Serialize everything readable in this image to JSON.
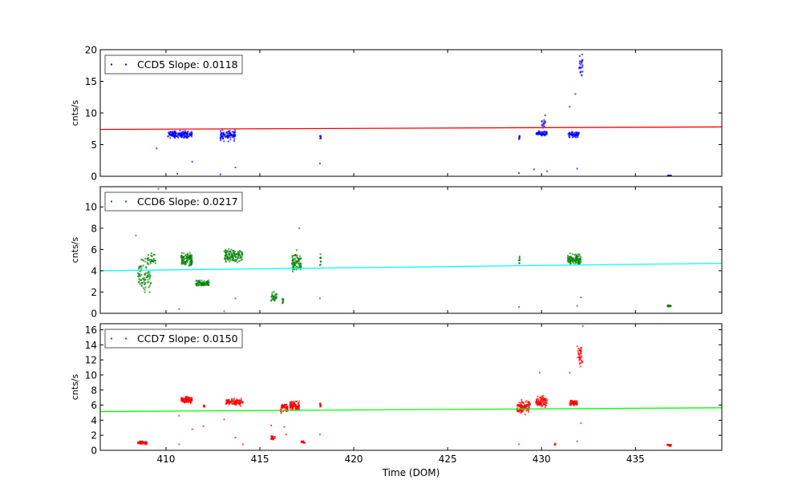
{
  "chart_data": [
    {
      "type": "scatter",
      "legend": "CCD5 Slope: 0.0118",
      "legend_placement": "top-left",
      "ylabel": "cnts/s",
      "xlabel": "",
      "xlim": [
        406.5,
        439.6
      ],
      "ylim": [
        0,
        20
      ],
      "yticks": [
        0,
        5,
        10,
        15,
        20
      ],
      "xticks": [
        410,
        415,
        420,
        425,
        430,
        435
      ],
      "point_color": "#0000ff",
      "fit_color": "#ff0000",
      "fit_line": [
        [
          406.5,
          7.4
        ],
        [
          439.6,
          7.8
        ]
      ],
      "clusters": [
        {
          "x": [
            410.1,
            411.4
          ],
          "y": 6.6,
          "spread": 0.5,
          "n": 150
        },
        {
          "x": [
            412.9,
            413.7
          ],
          "y": 6.5,
          "spread": 0.8,
          "n": 100
        },
        {
          "x": [
            418.2,
            418.25
          ],
          "y": 6.2,
          "spread": 0.3,
          "n": 8
        },
        {
          "x": [
            428.8,
            428.85
          ],
          "y": 6.2,
          "spread": 0.4,
          "n": 8
        },
        {
          "x": [
            429.7,
            430.3
          ],
          "y": 6.8,
          "spread": 0.3,
          "n": 60
        },
        {
          "x": [
            430.0,
            430.2
          ],
          "y": 8.5,
          "spread": 1.2,
          "n": 15
        },
        {
          "x": [
            431.4,
            432.0
          ],
          "y": 6.6,
          "spread": 0.4,
          "n": 60
        },
        {
          "x": [
            432.0,
            432.2
          ],
          "y": 17.5,
          "spread": 1.5,
          "n": 25
        },
        {
          "x": [
            436.7,
            436.9
          ],
          "y": 0.1,
          "spread": 0.05,
          "n": 15
        }
      ],
      "outliers": [
        [
          409.5,
          4.4
        ],
        [
          410.6,
          0.4
        ],
        [
          411.4,
          2.3
        ],
        [
          412.9,
          0.3
        ],
        [
          413.7,
          1.4
        ],
        [
          418.2,
          2.0
        ],
        [
          428.8,
          0.5
        ],
        [
          429.6,
          1.1
        ],
        [
          430.3,
          0.8
        ],
        [
          431.5,
          11.0
        ],
        [
          431.8,
          13.0
        ],
        [
          431.9,
          1.2
        ]
      ]
    },
    {
      "type": "scatter",
      "legend": "CCD6 Slope: 0.0217",
      "legend_placement": "top-left",
      "ylabel": "cnts/s",
      "xlabel": "",
      "xlim": [
        406.5,
        439.6
      ],
      "ylim": [
        0,
        11.9
      ],
      "yticks": [
        0,
        2,
        4,
        6,
        8,
        10
      ],
      "xticks": [
        410,
        415,
        420,
        425,
        430,
        435
      ],
      "point_color": "#008000",
      "fit_color": "#00ffff",
      "fit_line": [
        [
          406.5,
          4.0
        ],
        [
          439.6,
          4.7
        ]
      ],
      "clusters": [
        {
          "x": [
            408.5,
            409.2
          ],
          "y": 3.5,
          "spread": 1.4,
          "n": 80
        },
        {
          "x": [
            409.0,
            409.5
          ],
          "y": 5.0,
          "spread": 0.5,
          "n": 30
        },
        {
          "x": [
            410.8,
            411.4
          ],
          "y": 5.0,
          "spread": 0.6,
          "n": 100
        },
        {
          "x": [
            411.6,
            412.3
          ],
          "y": 2.8,
          "spread": 0.3,
          "n": 80
        },
        {
          "x": [
            413.1,
            414.1
          ],
          "y": 5.4,
          "spread": 0.6,
          "n": 120
        },
        {
          "x": [
            415.6,
            415.9
          ],
          "y": 1.5,
          "spread": 0.4,
          "n": 30
        },
        {
          "x": [
            416.2,
            416.25
          ],
          "y": 1.2,
          "spread": 0.5,
          "n": 10
        },
        {
          "x": [
            416.7,
            417.2
          ],
          "y": 4.8,
          "spread": 0.9,
          "n": 80
        },
        {
          "x": [
            418.2,
            418.25
          ],
          "y": 5.0,
          "spread": 0.5,
          "n": 10
        },
        {
          "x": [
            428.8,
            428.85
          ],
          "y": 5.0,
          "spread": 0.3,
          "n": 8
        },
        {
          "x": [
            431.4,
            432.1
          ],
          "y": 5.1,
          "spread": 0.5,
          "n": 100
        },
        {
          "x": [
            436.7,
            436.9
          ],
          "y": 0.7,
          "spread": 0.1,
          "n": 15
        }
      ],
      "outliers": [
        [
          408.4,
          7.3
        ],
        [
          410.7,
          0.4
        ],
        [
          413.1,
          0.2
        ],
        [
          413.7,
          1.4
        ],
        [
          417.1,
          8.0
        ],
        [
          418.2,
          1.4
        ],
        [
          428.8,
          0.6
        ],
        [
          431.9,
          0.7
        ],
        [
          432.1,
          1.5
        ],
        [
          409.6,
          11.7
        ]
      ]
    },
    {
      "type": "scatter",
      "legend": "CCD7 Slope: 0.0150",
      "legend_placement": "top-left",
      "ylabel": "cnts/s",
      "xlabel": "Time (DOM)",
      "xlim": [
        406.5,
        439.6
      ],
      "ylim": [
        0,
        16.8
      ],
      "yticks": [
        0,
        2,
        4,
        6,
        8,
        10,
        12,
        14,
        16
      ],
      "xticks": [
        410,
        415,
        420,
        425,
        430,
        435
      ],
      "point_color": "#ff0000",
      "fit_color": "#00ff00",
      "fit_line": [
        [
          406.5,
          5.15
        ],
        [
          439.6,
          5.65
        ]
      ],
      "clusters": [
        {
          "x": [
            408.5,
            409.0
          ],
          "y": 1.0,
          "spread": 0.2,
          "n": 60
        },
        {
          "x": [
            410.8,
            411.4
          ],
          "y": 6.7,
          "spread": 0.4,
          "n": 100
        },
        {
          "x": [
            412.0,
            412.05
          ],
          "y": 5.9,
          "spread": 0.2,
          "n": 8
        },
        {
          "x": [
            413.2,
            414.1
          ],
          "y": 6.4,
          "spread": 0.4,
          "n": 100
        },
        {
          "x": [
            415.6,
            415.8
          ],
          "y": 1.7,
          "spread": 0.3,
          "n": 25
        },
        {
          "x": [
            416.1,
            416.5
          ],
          "y": 5.6,
          "spread": 0.6,
          "n": 60
        },
        {
          "x": [
            416.6,
            417.1
          ],
          "y": 5.9,
          "spread": 0.5,
          "n": 90
        },
        {
          "x": [
            417.2,
            417.4
          ],
          "y": 1.1,
          "spread": 0.15,
          "n": 20
        },
        {
          "x": [
            418.2,
            418.25
          ],
          "y": 6.1,
          "spread": 0.3,
          "n": 8
        },
        {
          "x": [
            428.7,
            429.4
          ],
          "y": 5.8,
          "spread": 0.8,
          "n": 100
        },
        {
          "x": [
            429.7,
            430.3
          ],
          "y": 6.5,
          "spread": 0.7,
          "n": 80
        },
        {
          "x": [
            430.7,
            430.75
          ],
          "y": 0.8,
          "spread": 0.1,
          "n": 8
        },
        {
          "x": [
            431.5,
            431.9
          ],
          "y": 6.3,
          "spread": 0.3,
          "n": 60
        },
        {
          "x": [
            431.9,
            432.2
          ],
          "y": 12.5,
          "spread": 2.0,
          "n": 35
        },
        {
          "x": [
            436.7,
            436.9
          ],
          "y": 0.65,
          "spread": 0.1,
          "n": 15
        }
      ],
      "outliers": [
        [
          410.7,
          4.6
        ],
        [
          410.7,
          0.8
        ],
        [
          411.4,
          2.8
        ],
        [
          412.0,
          3.2
        ],
        [
          413.1,
          4.1
        ],
        [
          413.7,
          1.7
        ],
        [
          414.1,
          0.8
        ],
        [
          415.6,
          3.3
        ],
        [
          416.3,
          3.1
        ],
        [
          416.4,
          2.1
        ],
        [
          418.2,
          2.1
        ],
        [
          428.8,
          0.8
        ],
        [
          429.9,
          10.3
        ],
        [
          431.5,
          10.3
        ],
        [
          431.9,
          1.2
        ],
        [
          432.1,
          3.6
        ],
        [
          432.2,
          16.5
        ]
      ]
    }
  ]
}
